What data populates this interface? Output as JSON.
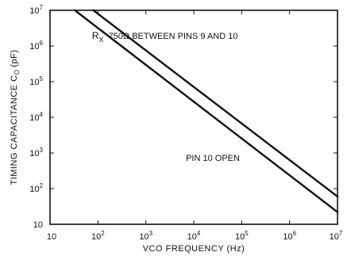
{
  "chart_data": {
    "type": "line",
    "xscale": "log",
    "yscale": "log",
    "xlabel": "VCO FREQUENCY (Hz)",
    "ylabel_main": "TIMING CAPACITANCE C",
    "ylabel_sub": "O",
    "ylabel_unit": "(pF)",
    "xlim": [
      10,
      10000000
    ],
    "ylim": [
      10,
      10000000
    ],
    "xticks": [
      {
        "value": 10,
        "base": "10",
        "exp": ""
      },
      {
        "value": 100,
        "base": "10",
        "exp": "2"
      },
      {
        "value": 1000,
        "base": "10",
        "exp": "3"
      },
      {
        "value": 10000,
        "base": "10",
        "exp": "4"
      },
      {
        "value": 100000,
        "base": "10",
        "exp": "5"
      },
      {
        "value": 1000000,
        "base": "10",
        "exp": "6"
      },
      {
        "value": 10000000,
        "base": "10",
        "exp": "7"
      }
    ],
    "yticks": [
      {
        "value": 10,
        "base": "10",
        "exp": ""
      },
      {
        "value": 100,
        "base": "10",
        "exp": "2"
      },
      {
        "value": 1000,
        "base": "10",
        "exp": "3"
      },
      {
        "value": 10000,
        "base": "10",
        "exp": "4"
      },
      {
        "value": 100000,
        "base": "10",
        "exp": "5"
      },
      {
        "value": 1000000,
        "base": "10",
        "exp": "6"
      },
      {
        "value": 10000000,
        "base": "10",
        "exp": "7"
      }
    ],
    "series": [
      {
        "x": [
          80,
          10000000
        ],
        "y": [
          10000000,
          60
        ]
      },
      {
        "x": [
          33,
          10000000
        ],
        "y": [
          10000000,
          22
        ]
      }
    ],
    "annotations": [
      {
        "id": "rx",
        "sym": "R",
        "sub": "X",
        "text": "750Ω BETWEEN PINS 9 AND 10",
        "x": 2500,
        "y": 1600000
      },
      {
        "id": "open",
        "text": "PIN 10 OPEN",
        "x": 25000,
        "y": 600
      }
    ],
    "grid": false,
    "legend": "none"
  }
}
